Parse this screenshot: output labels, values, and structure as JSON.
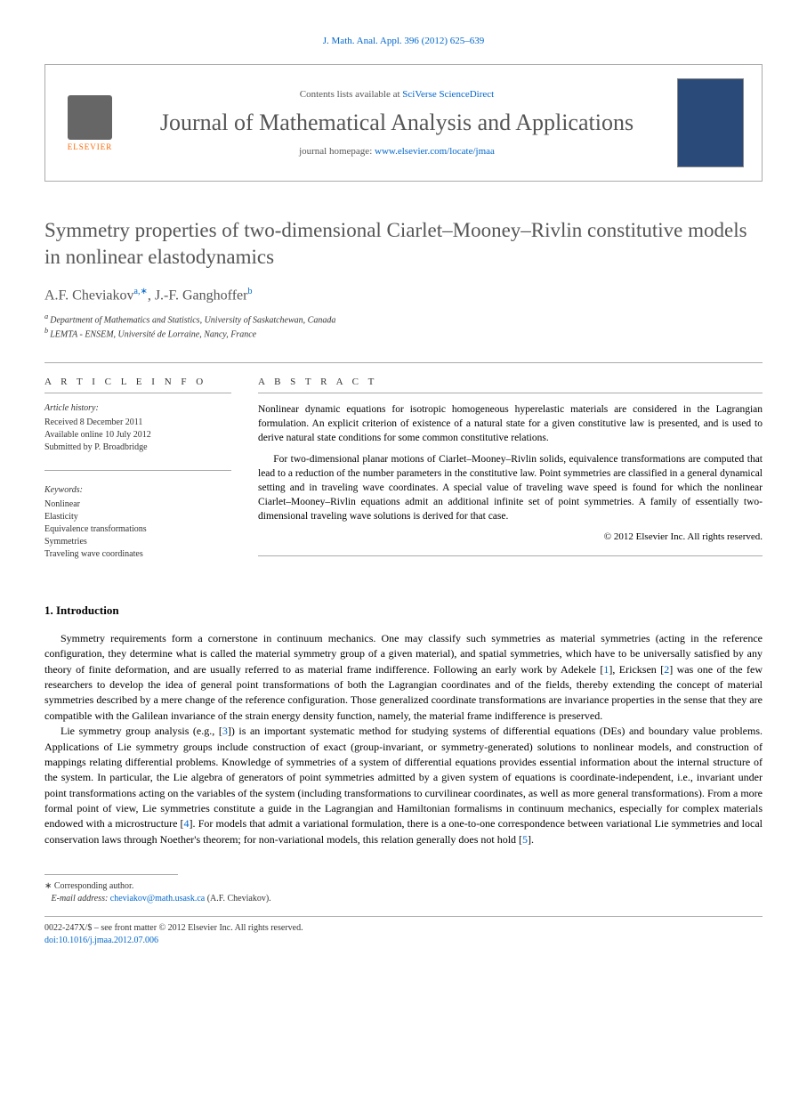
{
  "citation": "J. Math. Anal. Appl. 396 (2012) 625–639",
  "header": {
    "contents_prefix": "Contents lists available at ",
    "contents_link": "SciVerse ScienceDirect",
    "journal_name": "Journal of Mathematical Analysis and Applications",
    "homepage_prefix": "journal homepage: ",
    "homepage_url": "www.elsevier.com/locate/jmaa",
    "publisher": "ELSEVIER"
  },
  "title": "Symmetry properties of two-dimensional Ciarlet–Mooney–Rivlin constitutive models in nonlinear elastodynamics",
  "authors": {
    "a1_name": "A.F. Cheviakov",
    "a1_sup": "a,∗",
    "a2_name": "J.-F. Ganghoffer",
    "a2_sup": "b",
    "sep": ", "
  },
  "affiliations": {
    "a": "Department of Mathematics and Statistics, University of Saskatchewan, Canada",
    "b": "LEMTA - ENSEM, Université de Lorraine, Nancy, France",
    "a_label": "a ",
    "b_label": "b "
  },
  "info_label": "A R T I C L E   I N F O",
  "abstract_label": "A B S T R A C T",
  "history": {
    "hdr": "Article history:",
    "l1": "Received 8 December 2011",
    "l2": "Available online 10 July 2012",
    "l3": "Submitted by P. Broadbridge"
  },
  "keywords": {
    "hdr": "Keywords:",
    "k1": "Nonlinear",
    "k2": "Elasticity",
    "k3": "Equivalence transformations",
    "k4": "Symmetries",
    "k5": "Traveling wave coordinates"
  },
  "abstract": {
    "p1": "Nonlinear dynamic equations for isotropic homogeneous hyperelastic materials are considered in the Lagrangian formulation. An explicit criterion of existence of a natural state for a given constitutive law is presented, and is used to derive natural state conditions for some common constitutive relations.",
    "p2": "For two-dimensional planar motions of Ciarlet–Mooney–Rivlin solids, equivalence transformations are computed that lead to a reduction of the number parameters in the constitutive law. Point symmetries are classified in a general dynamical setting and in traveling wave coordinates. A special value of traveling wave speed is found for which the nonlinear Ciarlet–Mooney–Rivlin equations admit an additional infinite set of point symmetries. A family of essentially two-dimensional traveling wave solutions is derived for that case.",
    "copyright": "© 2012 Elsevier Inc. All rights reserved."
  },
  "section1": {
    "heading": "1.  Introduction",
    "p1_a": "Symmetry requirements form a cornerstone in continuum mechanics. One may classify such symmetries as material symmetries (acting in the reference configuration, they determine what is called the material symmetry group of a given material), and spatial symmetries, which have to be universally satisfied by any theory of finite deformation, and are usually referred to as material frame indifference. Following an early work by Adekele [",
    "r1": "1",
    "p1_b": "], Ericksen [",
    "r2": "2",
    "p1_c": "] was one of the few researchers to develop the idea of general point transformations of both the Lagrangian coordinates and of the fields, thereby extending the concept of material symmetries described by a mere change of the reference configuration. Those generalized coordinate transformations are invariance properties in the sense that they are compatible with the Galilean invariance of the strain energy density function, namely, the material frame indifference is preserved.",
    "p2_a": "Lie symmetry group analysis (e.g., [",
    "r3": "3",
    "p2_b": "]) is an important systematic method for studying systems of differential equations (DEs) and boundary value problems. Applications of Lie symmetry groups include construction of exact (group-invariant, or symmetry-generated) solutions to nonlinear models, and construction of mappings relating differential problems. Knowledge of symmetries of a system of differential equations provides essential information about the internal structure of the system. In particular, the Lie algebra of generators of point symmetries admitted by a given system of equations is coordinate-independent, i.e., invariant under point transformations acting on the variables of the system (including transformations to curvilinear coordinates, as well as more general transformations). From a more formal point of view, Lie symmetries constitute a guide in the Lagrangian and Hamiltonian formalisms in continuum mechanics, especially for complex materials endowed with a microstructure [",
    "r4": "4",
    "p2_c": "]. For models that admit a variational formulation, there is a one-to-one correspondence between variational Lie symmetries and local conservation laws through Noether's theorem; for non-variational models, this relation generally does not hold [",
    "r5": "5",
    "p2_d": "]."
  },
  "footnote": {
    "corr_label": "∗",
    "corr_text": "Corresponding author.",
    "email_label": "E-mail address: ",
    "email": "cheviakov@math.usask.ca",
    "email_suffix": " (A.F. Cheviakov)."
  },
  "bottom": {
    "issn": "0022-247X/$ – see front matter © 2012 Elsevier Inc. All rights reserved.",
    "doi_label": "doi:",
    "doi": "10.1016/j.jmaa.2012.07.006"
  },
  "colors": {
    "link": "#0066cc",
    "orange": "#ff6600",
    "gray_text": "#555555",
    "border": "#aaaaaa",
    "cover_bg": "#2a4a7a"
  }
}
